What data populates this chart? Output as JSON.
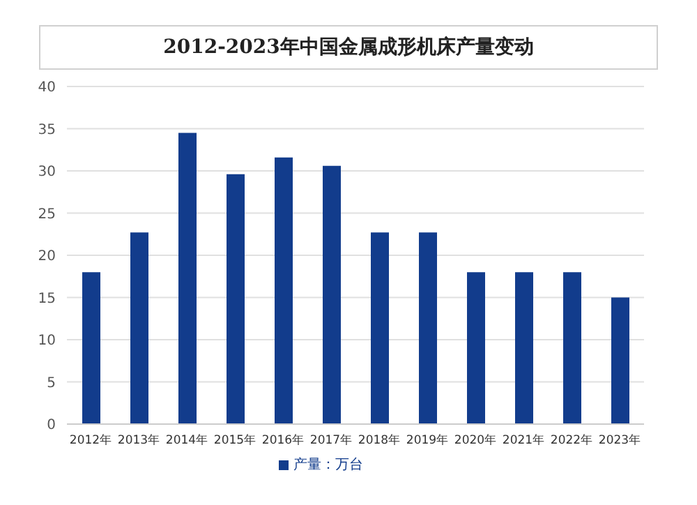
{
  "chart_data": {
    "type": "bar",
    "title": "2012-2023年中国金属成形机床产量变动",
    "categories": [
      "2012年",
      "2013年",
      "2014年",
      "2015年",
      "2016年",
      "2017年",
      "2018年",
      "2019年",
      "2020年",
      "2021年",
      "2022年",
      "2023年"
    ],
    "series": [
      {
        "name": "产量：万台",
        "color": "#123c8c",
        "values": [
          18,
          22.7,
          34.5,
          29.6,
          31.6,
          30.6,
          22.7,
          22.7,
          18,
          18,
          18,
          15
        ]
      }
    ],
    "ylim": [
      0,
      40
    ],
    "yticks": [
      0,
      5,
      10,
      15,
      20,
      25,
      30,
      35,
      40
    ],
    "grid": "y",
    "legend": "bottom"
  }
}
